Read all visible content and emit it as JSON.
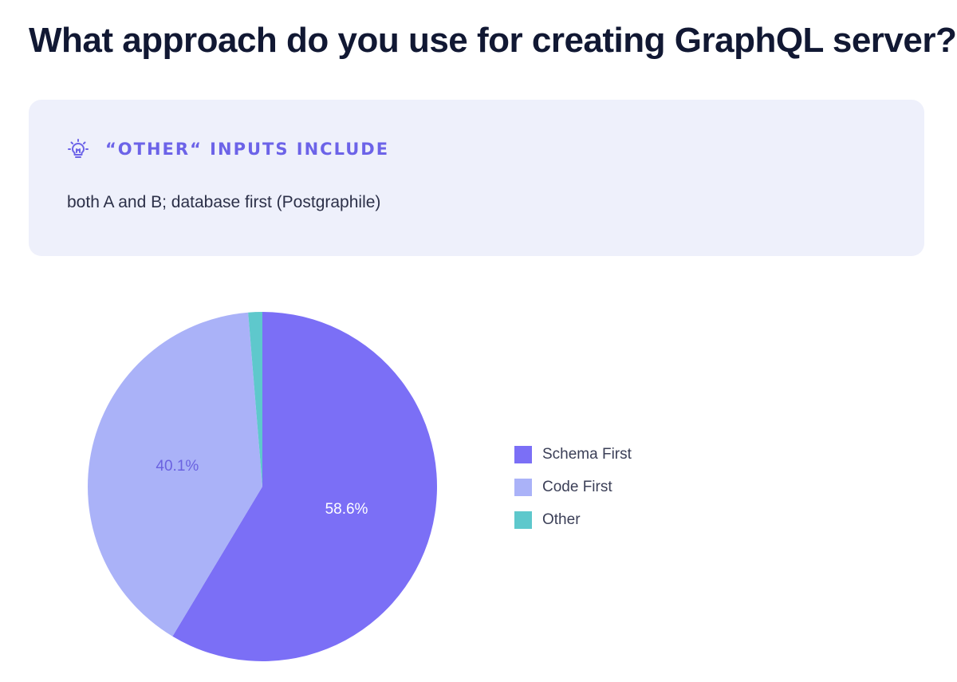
{
  "title": "What approach do you use for creating GraphQL server?",
  "info": {
    "heading": "“OTHER“ INPUTS INCLUDE",
    "body": "both A and B; database first (Postgraphile)",
    "icon": "lightbulb-icon"
  },
  "chart_data": {
    "type": "pie",
    "categories": [
      "Schema First",
      "Code First",
      "Other"
    ],
    "values": [
      58.6,
      40.1,
      1.3
    ],
    "data_labels": [
      "58.6%",
      "40.1%",
      ""
    ],
    "colors": [
      "#7b6ff6",
      "#aab2f8",
      "#5ec8cc"
    ],
    "label_colors": [
      "#ffffff",
      "#6a62e0",
      ""
    ],
    "legend_position": "right"
  }
}
